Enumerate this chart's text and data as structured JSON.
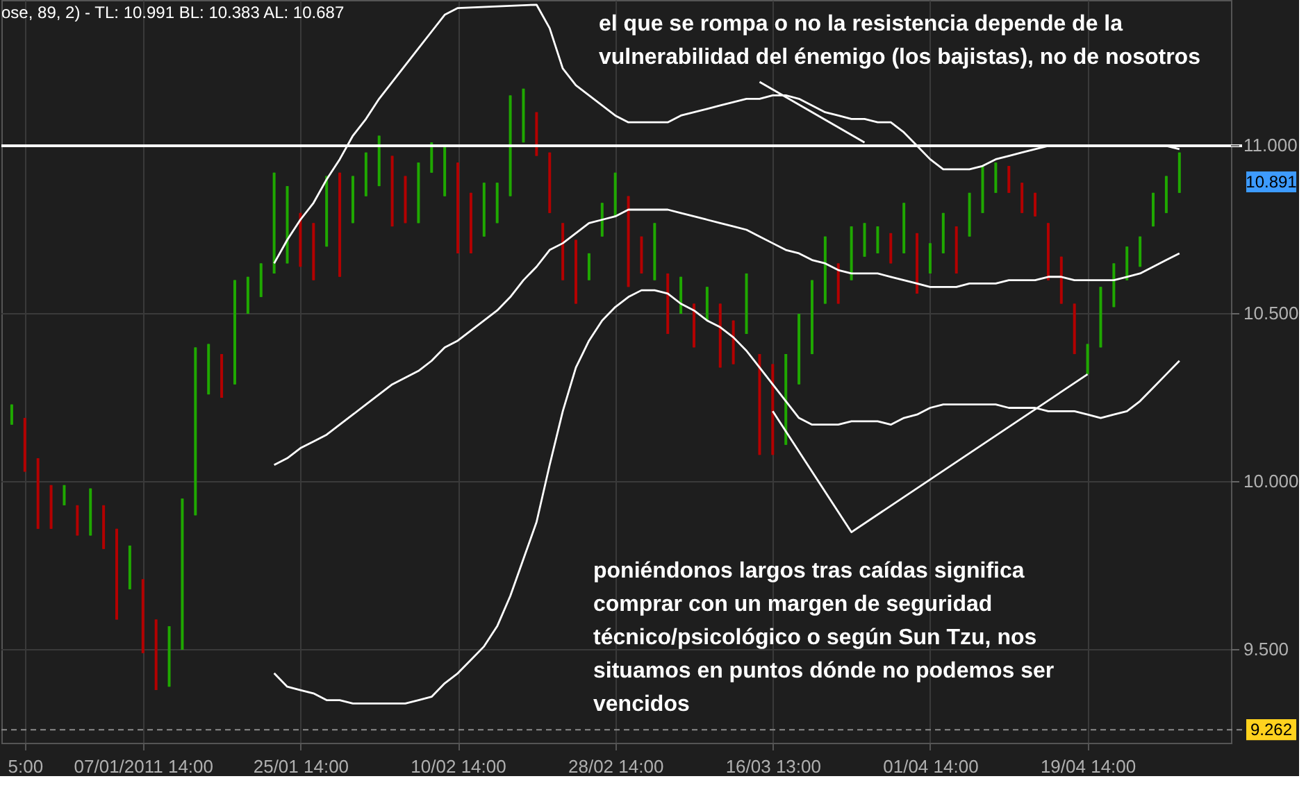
{
  "chart_data": {
    "type": "candlestick",
    "categories": [
      null,
      "5:00",
      null,
      null,
      null,
      null,
      null,
      null,
      null,
      null,
      "07/01/2011 14:00",
      null,
      null,
      null,
      null,
      null,
      null,
      null,
      null,
      null,
      null,
      null,
      "25/01 14:00",
      null,
      null,
      null,
      null,
      null,
      null,
      null,
      null,
      null,
      null,
      null,
      "10/02 14:00",
      null,
      null,
      null,
      null,
      null,
      null,
      null,
      null,
      null,
      null,
      null,
      "28/02 14:00",
      null,
      null,
      null,
      null,
      null,
      null,
      null,
      null,
      null,
      null,
      null,
      "16/03 13:00",
      null,
      null,
      null,
      null,
      null,
      null,
      null,
      null,
      null,
      null,
      null,
      "01/04 14:00",
      null,
      null,
      null,
      null,
      null,
      null,
      null,
      null,
      null,
      null,
      null,
      "19/04 14:00",
      null,
      null,
      null,
      null,
      null,
      null,
      null
    ],
    "ohlc": [
      [
        10.17,
        10.23,
        10.17,
        10.23
      ],
      [
        10.19,
        10.19,
        10.03,
        10.03
      ],
      [
        10.07,
        10.07,
        9.86,
        9.86
      ],
      [
        9.99,
        9.99,
        9.86,
        9.86
      ],
      [
        9.93,
        9.99,
        9.93,
        9.99
      ],
      [
        9.93,
        9.93,
        9.84,
        9.84
      ],
      [
        9.84,
        9.98,
        9.84,
        9.98
      ],
      [
        9.93,
        9.93,
        9.8,
        9.8
      ],
      [
        9.86,
        9.86,
        9.59,
        9.59
      ],
      [
        9.68,
        9.81,
        9.68,
        9.81
      ],
      [
        9.71,
        9.71,
        9.49,
        9.49
      ],
      [
        9.59,
        9.59,
        9.38,
        9.38
      ],
      [
        9.39,
        9.57,
        9.39,
        9.57
      ],
      [
        9.5,
        9.95,
        9.5,
        9.95
      ],
      [
        9.9,
        10.4,
        9.9,
        10.4
      ],
      [
        10.26,
        10.41,
        10.26,
        10.41
      ],
      [
        10.38,
        10.38,
        10.25,
        10.25
      ],
      [
        10.29,
        10.6,
        10.29,
        10.6
      ],
      [
        10.5,
        10.61,
        10.5,
        10.61
      ],
      [
        10.55,
        10.65,
        10.55,
        10.65
      ],
      [
        10.62,
        10.92,
        10.62,
        10.92
      ],
      [
        10.65,
        10.88,
        10.65,
        10.88
      ],
      [
        10.8,
        10.8,
        10.64,
        10.64
      ],
      [
        10.77,
        10.77,
        10.6,
        10.6
      ],
      [
        10.7,
        10.91,
        10.7,
        10.91
      ],
      [
        10.92,
        10.92,
        10.61,
        10.61
      ],
      [
        10.77,
        10.91,
        10.77,
        10.91
      ],
      [
        10.85,
        10.98,
        10.85,
        10.98
      ],
      [
        10.88,
        11.03,
        10.88,
        11.03
      ],
      [
        10.97,
        10.97,
        10.76,
        10.76
      ],
      [
        10.91,
        10.91,
        10.77,
        10.77
      ],
      [
        10.77,
        10.95,
        10.77,
        10.95
      ],
      [
        10.92,
        11.01,
        10.92,
        11.01
      ],
      [
        10.85,
        11.0,
        10.85,
        11.0
      ],
      [
        10.95,
        10.95,
        10.68,
        10.68
      ],
      [
        10.86,
        10.86,
        10.68,
        10.68
      ],
      [
        10.73,
        10.89,
        10.73,
        10.89
      ],
      [
        10.77,
        10.89,
        10.77,
        10.89
      ],
      [
        10.85,
        11.15,
        10.85,
        11.15
      ],
      [
        11.01,
        11.17,
        11.01,
        11.17
      ],
      [
        11.1,
        11.1,
        10.97,
        10.97
      ],
      [
        10.98,
        10.98,
        10.8,
        10.8
      ],
      [
        10.77,
        10.77,
        10.6,
        10.6
      ],
      [
        10.72,
        10.72,
        10.53,
        10.53
      ],
      [
        10.6,
        10.68,
        10.6,
        10.68
      ],
      [
        10.73,
        10.83,
        10.73,
        10.83
      ],
      [
        10.79,
        10.92,
        10.79,
        10.92
      ],
      [
        10.85,
        10.85,
        10.58,
        10.58
      ],
      [
        10.73,
        10.73,
        10.62,
        10.62
      ],
      [
        10.6,
        10.77,
        10.6,
        10.77
      ],
      [
        10.62,
        10.62,
        10.44,
        10.44
      ],
      [
        10.5,
        10.61,
        10.5,
        10.61
      ],
      [
        10.53,
        10.53,
        10.4,
        10.4
      ],
      [
        10.48,
        10.58,
        10.48,
        10.58
      ],
      [
        10.53,
        10.53,
        10.34,
        10.34
      ],
      [
        10.48,
        10.48,
        10.35,
        10.35
      ],
      [
        10.44,
        10.62,
        10.44,
        10.62
      ],
      [
        10.38,
        10.38,
        10.08,
        10.08
      ],
      [
        10.35,
        10.35,
        10.08,
        10.08
      ],
      [
        10.11,
        10.38,
        10.11,
        10.38
      ],
      [
        10.29,
        10.5,
        10.29,
        10.5
      ],
      [
        10.38,
        10.6,
        10.38,
        10.6
      ],
      [
        10.53,
        10.73,
        10.53,
        10.73
      ],
      [
        10.65,
        10.65,
        10.53,
        10.53
      ],
      [
        10.6,
        10.76,
        10.6,
        10.76
      ],
      [
        10.67,
        10.77,
        10.67,
        10.77
      ],
      [
        10.68,
        10.76,
        10.68,
        10.76
      ],
      [
        10.74,
        10.74,
        10.65,
        10.65
      ],
      [
        10.68,
        10.83,
        10.68,
        10.83
      ],
      [
        10.74,
        10.74,
        10.56,
        10.56
      ],
      [
        10.62,
        10.71,
        10.62,
        10.71
      ],
      [
        10.68,
        10.8,
        10.68,
        10.8
      ],
      [
        10.76,
        10.76,
        10.62,
        10.62
      ],
      [
        10.73,
        10.86,
        10.73,
        10.86
      ],
      [
        10.8,
        10.94,
        10.8,
        10.94
      ],
      [
        10.86,
        10.95,
        10.86,
        10.95
      ],
      [
        10.94,
        10.94,
        10.86,
        10.86
      ],
      [
        10.89,
        10.89,
        10.8,
        10.8
      ],
      [
        10.86,
        10.86,
        10.79,
        10.79
      ],
      [
        10.77,
        10.77,
        10.6,
        10.6
      ],
      [
        10.67,
        10.67,
        10.53,
        10.53
      ],
      [
        10.53,
        10.53,
        10.38,
        10.38
      ],
      [
        10.32,
        10.41,
        10.32,
        10.41
      ],
      [
        10.4,
        10.58,
        10.4,
        10.58
      ],
      [
        10.52,
        10.65,
        10.52,
        10.65
      ],
      [
        10.6,
        10.7,
        10.6,
        10.7
      ],
      [
        10.64,
        10.73,
        10.64,
        10.73
      ],
      [
        10.76,
        10.86,
        10.76,
        10.86
      ],
      [
        10.8,
        10.91,
        10.8,
        10.91
      ],
      [
        10.86,
        10.98,
        10.86,
        10.98
      ]
    ],
    "colors": [
      "#1fa800",
      "#b30000",
      "#b30000",
      "#b30000",
      "#1fa800",
      "#b30000",
      "#1fa800",
      "#b30000",
      "#b30000",
      "#1fa800",
      "#b30000",
      "#b30000",
      "#1fa800",
      "#1fa800",
      "#1fa800",
      "#1fa800",
      "#b30000",
      "#1fa800",
      "#1fa800",
      "#1fa800",
      "#1fa800",
      "#1fa800",
      "#b30000",
      "#b30000",
      "#1fa800",
      "#b30000",
      "#1fa800",
      "#1fa800",
      "#1fa800",
      "#b30000",
      "#b30000",
      "#1fa800",
      "#1fa800",
      "#1fa800",
      "#b30000",
      "#b30000",
      "#1fa800",
      "#1fa800",
      "#1fa800",
      "#1fa800",
      "#b30000",
      "#b30000",
      "#b30000",
      "#b30000",
      "#1fa800",
      "#1fa800",
      "#1fa800",
      "#b30000",
      "#b30000",
      "#1fa800",
      "#b30000",
      "#1fa800",
      "#b30000",
      "#1fa800",
      "#b30000",
      "#b30000",
      "#1fa800",
      "#b30000",
      "#b30000",
      "#1fa800",
      "#1fa800",
      "#1fa800",
      "#1fa800",
      "#b30000",
      "#1fa800",
      "#1fa800",
      "#1fa800",
      "#b30000",
      "#1fa800",
      "#b30000",
      "#1fa800",
      "#1fa800",
      "#b30000",
      "#1fa800",
      "#1fa800",
      "#1fa800",
      "#b30000",
      "#b30000",
      "#b30000",
      "#b30000",
      "#b30000",
      "#b30000",
      "#1fa800",
      "#1fa800",
      "#1fa800",
      "#1fa800",
      "#1fa800",
      "#1fa800",
      "#1fa800",
      "#1fa800"
    ],
    "series": [
      {
        "type": "line",
        "color": "#ffffff",
        "values": [
          null,
          null,
          null,
          null,
          null,
          null,
          null,
          null,
          null,
          null,
          null,
          null,
          null,
          null,
          null,
          null,
          null,
          null,
          null,
          null,
          10.65,
          10.72,
          10.78,
          10.83,
          10.9,
          10.96,
          11.03,
          11.08,
          11.14,
          11.19,
          11.24,
          11.29,
          11.34,
          11.39,
          11.41,
          null,
          null,
          null,
          null,
          null,
          11.42,
          11.35,
          11.23,
          11.18,
          11.15,
          11.12,
          11.09,
          11.07,
          11.07,
          11.07,
          11.07,
          11.09,
          11.1,
          11.11,
          11.12,
          11.13,
          11.14,
          11.14,
          11.15,
          11.15,
          11.14,
          11.12,
          11.1,
          11.09,
          11.08,
          11.08,
          11.07,
          11.07,
          11.04,
          11.0,
          10.96,
          10.93,
          10.93,
          10.93,
          10.94,
          10.96,
          10.97,
          10.98,
          10.99,
          11.0,
          11.0,
          11.0,
          11.0,
          11.0,
          11.0,
          11.0,
          11.0,
          11.0,
          11.0,
          10.99
        ]
      },
      {
        "type": "line",
        "color": "#ffffff",
        "values": [
          null,
          null,
          null,
          null,
          null,
          null,
          null,
          null,
          null,
          null,
          null,
          null,
          null,
          null,
          null,
          null,
          null,
          null,
          null,
          null,
          10.05,
          10.07,
          10.1,
          10.12,
          10.14,
          10.17,
          10.2,
          10.23,
          10.26,
          10.29,
          10.31,
          10.33,
          10.36,
          10.4,
          10.42,
          10.45,
          10.48,
          10.51,
          10.55,
          10.6,
          10.64,
          10.69,
          10.71,
          10.74,
          10.77,
          10.78,
          10.79,
          10.81,
          10.81,
          10.81,
          10.81,
          10.8,
          10.79,
          10.78,
          10.77,
          10.76,
          10.75,
          10.73,
          10.71,
          10.69,
          10.68,
          10.66,
          10.65,
          10.63,
          10.62,
          10.62,
          10.62,
          10.61,
          10.6,
          10.59,
          10.58,
          10.58,
          10.58,
          10.59,
          10.59,
          10.59,
          10.6,
          10.6,
          10.6,
          10.61,
          10.61,
          10.6,
          10.6,
          10.6,
          10.6,
          10.61,
          10.62,
          10.64,
          10.66,
          10.68
        ]
      },
      {
        "type": "line",
        "color": "#ffffff",
        "values": [
          null,
          null,
          null,
          null,
          null,
          null,
          null,
          null,
          null,
          null,
          null,
          null,
          null,
          null,
          null,
          null,
          null,
          null,
          null,
          null,
          9.43,
          9.39,
          9.38,
          9.37,
          9.35,
          9.35,
          9.34,
          9.34,
          9.34,
          9.34,
          9.34,
          9.35,
          9.36,
          9.4,
          9.43,
          9.47,
          9.51,
          9.57,
          9.66,
          9.77,
          9.88,
          10.05,
          10.21,
          10.34,
          10.42,
          10.48,
          10.52,
          10.55,
          10.57,
          10.57,
          10.56,
          10.53,
          10.51,
          10.48,
          10.46,
          10.43,
          10.39,
          10.34,
          10.29,
          10.24,
          10.19,
          10.17,
          10.17,
          10.17,
          10.18,
          10.18,
          10.18,
          10.17,
          10.19,
          10.2,
          10.22,
          10.23,
          10.23,
          10.23,
          10.23,
          10.23,
          10.22,
          10.22,
          10.22,
          10.21,
          10.21,
          10.21,
          10.2,
          10.19,
          10.2,
          10.21,
          10.24,
          10.28,
          10.32,
          10.36
        ]
      },
      {
        "type": "line",
        "color": "#ffffff",
        "values": [
          null,
          null,
          null,
          null,
          null,
          null,
          null,
          null,
          null,
          null,
          null,
          null,
          null,
          null,
          null,
          null,
          null,
          null,
          null,
          null,
          null,
          null,
          null,
          null,
          null,
          null,
          null,
          null,
          null,
          null,
          null,
          null,
          null,
          null,
          null,
          null,
          null,
          null,
          null,
          null,
          null,
          null,
          null,
          null,
          null,
          null,
          null,
          null,
          null,
          null,
          null,
          null,
          null,
          null,
          null,
          null,
          null,
          null,
          10.21,
          null,
          null,
          null,
          null,
          null,
          9.85,
          null,
          null,
          null,
          null,
          null,
          null,
          null,
          null,
          null,
          null,
          null,
          null,
          null,
          null,
          null,
          null,
          null,
          10.32,
          null,
          null,
          null,
          null,
          null,
          null,
          null
        ]
      },
      {
        "type": "line",
        "color": "#ffffff",
        "values": [
          null,
          null,
          null,
          null,
          null,
          null,
          null,
          null,
          null,
          null,
          null,
          null,
          null,
          null,
          null,
          null,
          null,
          null,
          null,
          null,
          null,
          null,
          null,
          null,
          null,
          null,
          null,
          null,
          null,
          null,
          null,
          null,
          null,
          null,
          null,
          null,
          null,
          null,
          null,
          null,
          null,
          null,
          null,
          null,
          null,
          null,
          null,
          null,
          null,
          null,
          null,
          null,
          null,
          null,
          null,
          null,
          null,
          11.19,
          null,
          null,
          null,
          null,
          null,
          null,
          null,
          11.01,
          null,
          null,
          null,
          null,
          null,
          null,
          null,
          null,
          null,
          null,
          null,
          null,
          null,
          null,
          null,
          null,
          null,
          null,
          null,
          null,
          null,
          null,
          null,
          null
        ]
      }
    ],
    "ylim": [
      9.223,
      11.434
    ],
    "yticks": [
      {
        "value": 9.5,
        "label": "9.500"
      },
      {
        "value": 10,
        "label": "10.000"
      },
      {
        "value": 10.5,
        "label": "10.500"
      },
      {
        "value": 11,
        "label": "11.000"
      }
    ],
    "ref_lines": [
      {
        "axis": "y",
        "value": 11.0,
        "color": "#ffffff",
        "line_style": "solid"
      },
      {
        "axis": "y",
        "value": 9.262,
        "label": "9.262",
        "color": "#8a8a8a",
        "line_style": "dashed"
      }
    ],
    "annotations": [
      "ose, 89, 2) -  TL: 10.991  BL: 10.383  AL: 10.687",
      "el que se rompa o no la resistencia depende de la\nvulnerabilidad del énemigo (los bajistas), no de nosotros",
      "poniéndonos largos tras caídas significa\ncomprar con un margen de seguridad\ntécnico/psicológico o según Sun Tzu, nos\nsituamos en puntos dónde no podemos ser\nvencidos",
      "10.891"
    ],
    "grid": true
  }
}
